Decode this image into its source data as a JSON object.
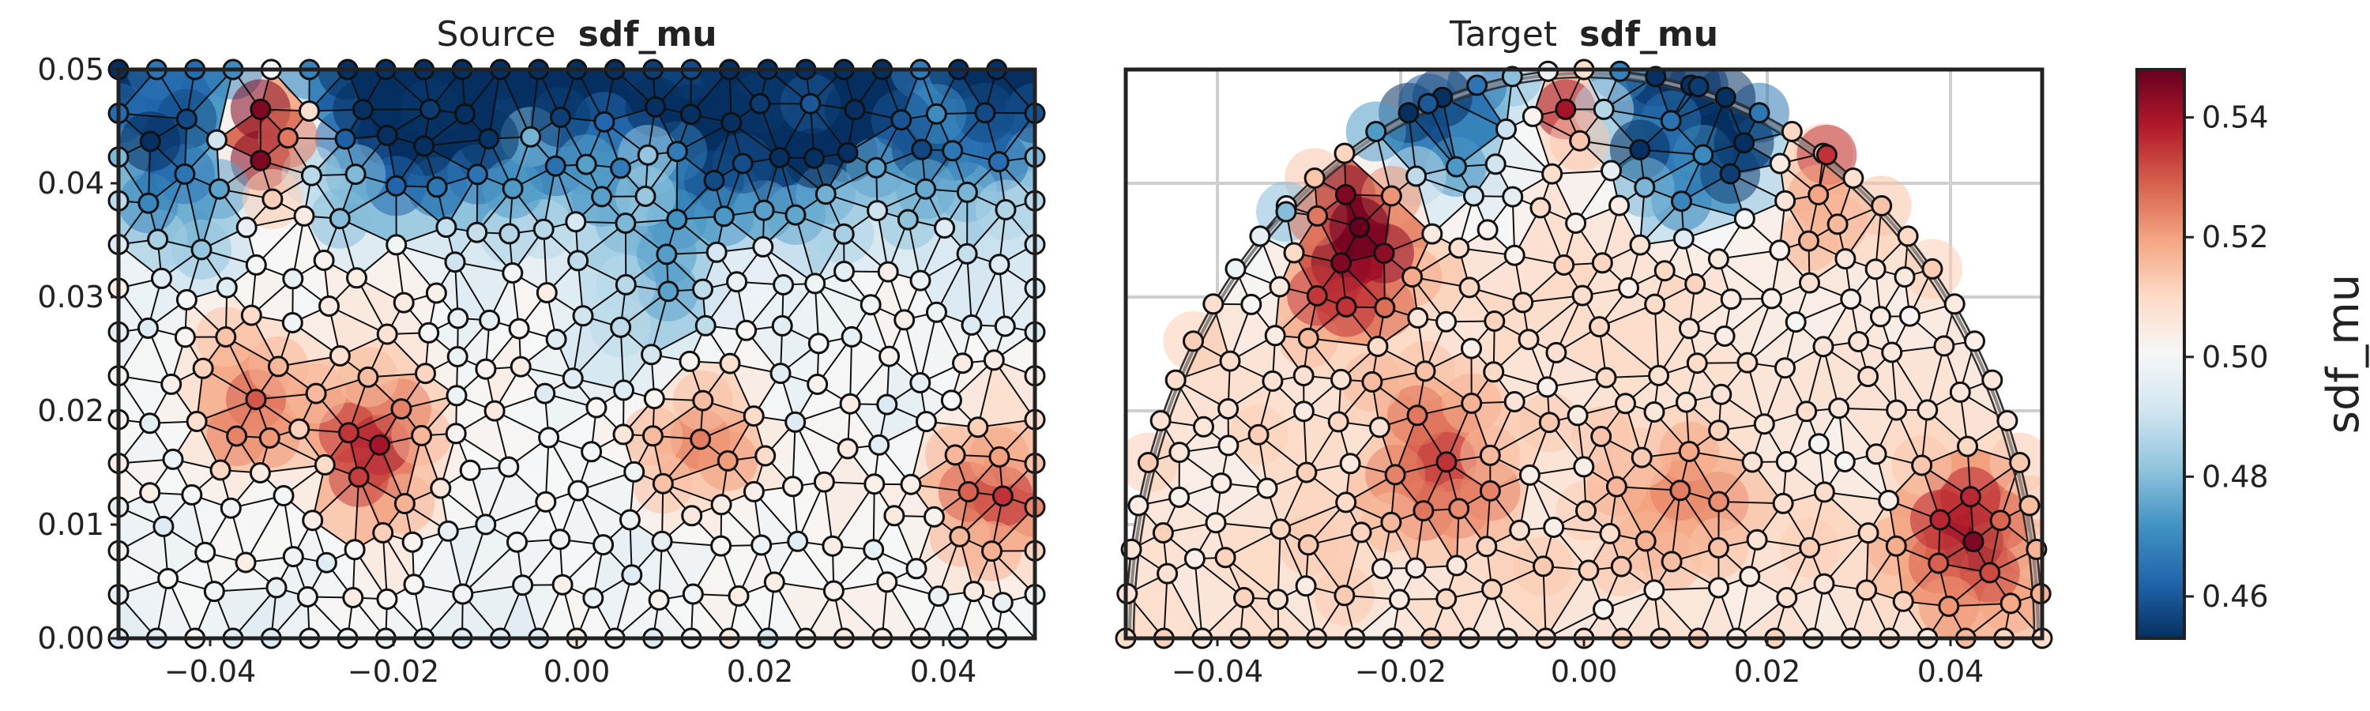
{
  "chart_data": [
    {
      "type": "scatter",
      "panel": "source",
      "title": "Source",
      "title_bold": "sdf_mu",
      "xlim": [
        -0.05,
        0.05
      ],
      "ylim": [
        0.0,
        0.05
      ],
      "xticks": [
        "−0.04",
        "−0.02",
        "0.00",
        "0.02",
        "0.04"
      ],
      "xtick_values": [
        -0.04,
        -0.02,
        0.0,
        0.02,
        0.04
      ],
      "yticks": [
        "0.00",
        "0.01",
        "0.02",
        "0.03",
        "0.04",
        "0.05"
      ],
      "ytick_values": [
        0.0,
        0.01,
        0.02,
        0.03,
        0.04,
        0.05
      ],
      "grid": false,
      "domain_shape": "rectangle",
      "mesh": "triangulated",
      "notable_nodes": [
        {
          "x": -0.0345,
          "y": 0.0465,
          "value": 0.545
        },
        {
          "x": -0.0345,
          "y": 0.042,
          "value": 0.545
        },
        {
          "x": -0.035,
          "y": 0.021,
          "value": 0.53
        },
        {
          "x": -0.0215,
          "y": 0.017,
          "value": 0.54
        },
        {
          "x": 0.0465,
          "y": 0.0125,
          "value": 0.535
        },
        {
          "x": -0.016,
          "y": 0.0465,
          "value": 0.455
        },
        {
          "x": 0.02,
          "y": 0.047,
          "value": 0.455
        },
        {
          "x": 0.0255,
          "y": 0.047,
          "value": 0.46
        },
        {
          "x": -0.039,
          "y": 0.0395,
          "value": 0.475
        },
        {
          "x": 0.01,
          "y": 0.0305,
          "value": 0.475
        },
        {
          "x": 0.0135,
          "y": 0.0175,
          "value": 0.525
        }
      ]
    },
    {
      "type": "scatter",
      "panel": "target",
      "title": "Target",
      "title_bold": "sdf_mu",
      "xlim": [
        -0.05,
        0.05
      ],
      "ylim": [
        0.0,
        0.05
      ],
      "xticks": [
        "−0.04",
        "−0.02",
        "0.00",
        "0.02",
        "0.04"
      ],
      "xtick_values": [
        -0.04,
        -0.02,
        0.0,
        0.02,
        0.04
      ],
      "yticks": [],
      "grid": true,
      "domain_shape": "semicircle",
      "radius": 0.05,
      "mesh": "triangulated",
      "notable_nodes": [
        {
          "x": -0.026,
          "y": 0.039,
          "value": 0.545
        },
        {
          "x": -0.0265,
          "y": 0.033,
          "value": 0.545
        },
        {
          "x": -0.015,
          "y": 0.0155,
          "value": 0.535
        },
        {
          "x": -0.002,
          "y": 0.0465,
          "value": 0.54
        },
        {
          "x": 0.0265,
          "y": 0.0425,
          "value": 0.535
        },
        {
          "x": 0.0425,
          "y": 0.0085,
          "value": 0.545
        },
        {
          "x": -0.017,
          "y": 0.047,
          "value": 0.46
        },
        {
          "x": 0.0125,
          "y": 0.0485,
          "value": 0.455
        },
        {
          "x": 0.0095,
          "y": 0.0455,
          "value": 0.465
        },
        {
          "x": 0.013,
          "y": 0.0425,
          "value": 0.47
        },
        {
          "x": -0.0325,
          "y": 0.0375,
          "value": 0.48
        },
        {
          "x": 0.0105,
          "y": 0.013,
          "value": 0.525
        }
      ]
    }
  ],
  "colorbar": {
    "label": "sdf_mu",
    "vmin": 0.453,
    "vmax": 0.548,
    "ticks": [
      "0.46",
      "0.48",
      "0.50",
      "0.52",
      "0.54"
    ],
    "tick_values": [
      0.46,
      0.48,
      0.5,
      0.52,
      0.54
    ],
    "colormap": "RdBu_r",
    "colors": [
      "#053061",
      "#2166ac",
      "#4393c3",
      "#92c5de",
      "#d1e5f0",
      "#f7f7f7",
      "#fddbc7",
      "#f4a582",
      "#d6604d",
      "#b2182b",
      "#67001f"
    ]
  }
}
